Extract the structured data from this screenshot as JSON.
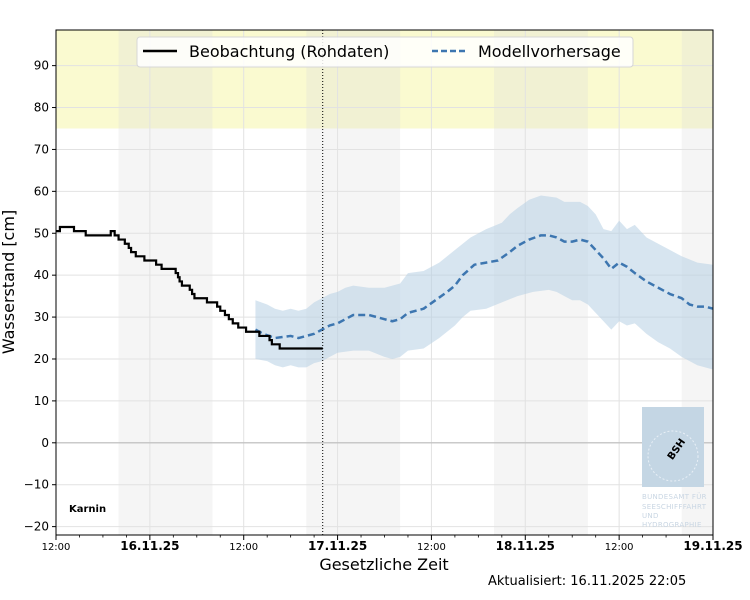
{
  "chart_data": {
    "type": "line",
    "ylabel": "Wasserstand [cm]",
    "xlabel": "Gesetzliche Zeit",
    "ylim": [
      -22,
      98.5
    ],
    "xlim_hours": [
      0,
      84
    ],
    "grid": true,
    "yticks": [
      -20,
      -10,
      0,
      10,
      20,
      30,
      40,
      50,
      60,
      70,
      80,
      90
    ],
    "ytick_labels": [
      "−20",
      "−10",
      "0",
      "10",
      "20",
      "30",
      "40",
      "50",
      "60",
      "70",
      "80",
      "90"
    ],
    "xticks": [
      {
        "hour": 0,
        "label": "12:00",
        "major": false
      },
      {
        "hour": 12,
        "label": "16.11.25",
        "major": true
      },
      {
        "hour": 24,
        "label": "12:00",
        "major": false
      },
      {
        "hour": 36,
        "label": "17.11.25",
        "major": true
      },
      {
        "hour": 48,
        "label": "12:00",
        "major": false
      },
      {
        "hour": 60,
        "label": "18.11.25",
        "major": true
      },
      {
        "hour": 72,
        "label": "12:00",
        "major": false
      },
      {
        "hour": 84,
        "label": "19.11.25",
        "major": true
      }
    ],
    "night_bands_hours": [
      [
        8,
        20
      ],
      [
        32,
        44
      ],
      [
        56,
        68
      ],
      [
        80,
        84
      ]
    ],
    "warning_band_cm": [
      75,
      98.5
    ],
    "now_hour": 34.1,
    "station": "Karnin",
    "series": [
      {
        "name": "Beobachtung (Rohdaten)",
        "style": "solid",
        "color": "#000000",
        "points": [
          [
            0,
            50.5
          ],
          [
            0.5,
            51.5
          ],
          [
            2.3,
            50.5
          ],
          [
            3.8,
            49.5
          ],
          [
            7.0,
            50.5
          ],
          [
            7.5,
            49.5
          ],
          [
            8.0,
            48.5
          ],
          [
            8.8,
            47.5
          ],
          [
            9.3,
            46.5
          ],
          [
            9.6,
            45.5
          ],
          [
            10.2,
            44.5
          ],
          [
            11.3,
            43.5
          ],
          [
            12.8,
            42.5
          ],
          [
            13.5,
            41.5
          ],
          [
            15.3,
            40.5
          ],
          [
            15.6,
            39.5
          ],
          [
            15.8,
            38.5
          ],
          [
            16.1,
            37.5
          ],
          [
            17.1,
            36.5
          ],
          [
            17.4,
            35.5
          ],
          [
            17.7,
            34.5
          ],
          [
            19.3,
            33.5
          ],
          [
            20.6,
            32.5
          ],
          [
            21.0,
            31.5
          ],
          [
            21.6,
            30.5
          ],
          [
            22.1,
            29.5
          ],
          [
            22.6,
            28.5
          ],
          [
            23.3,
            27.5
          ],
          [
            24.3,
            26.5
          ],
          [
            26.0,
            25.5
          ],
          [
            27.3,
            24.5
          ],
          [
            27.6,
            23.5
          ],
          [
            28.6,
            22.5
          ],
          [
            34.1,
            22.5
          ]
        ]
      },
      {
        "name": "Modellvorhersage",
        "style": "dashed",
        "color": "#3d76b0",
        "band_color": "#b7cfe4",
        "points": [
          [
            25.5,
            27.0
          ],
          [
            26.5,
            26.0
          ],
          [
            28.0,
            25.0
          ],
          [
            30.0,
            25.5
          ],
          [
            31.0,
            25.0
          ],
          [
            32.0,
            25.5
          ],
          [
            33.0,
            26.0
          ],
          [
            34.0,
            27.0
          ],
          [
            35.0,
            28.0
          ],
          [
            36.0,
            28.5
          ],
          [
            37.0,
            29.5
          ],
          [
            38.0,
            30.5
          ],
          [
            40.0,
            30.5
          ],
          [
            41.0,
            30.0
          ],
          [
            42.0,
            29.5
          ],
          [
            43.0,
            29.0
          ],
          [
            44.0,
            29.5
          ],
          [
            45.0,
            31.0
          ],
          [
            47.0,
            32.0
          ],
          [
            48.5,
            34.0
          ],
          [
            50.0,
            36.0
          ],
          [
            51.0,
            37.5
          ],
          [
            52.0,
            40.0
          ],
          [
            53.5,
            42.5
          ],
          [
            55.0,
            43.0
          ],
          [
            56.5,
            43.5
          ],
          [
            58.0,
            45.5
          ],
          [
            59.0,
            47.0
          ],
          [
            60.5,
            48.5
          ],
          [
            62.0,
            49.5
          ],
          [
            63.0,
            49.5
          ],
          [
            64.0,
            49.0
          ],
          [
            65.0,
            48.0
          ],
          [
            66.0,
            48.0
          ],
          [
            67.0,
            48.5
          ],
          [
            68.0,
            48.0
          ],
          [
            69.0,
            46.0
          ],
          [
            70.0,
            44.0
          ],
          [
            71.0,
            41.5
          ],
          [
            72.0,
            43.0
          ],
          [
            73.0,
            42.0
          ],
          [
            74.0,
            40.5
          ],
          [
            75.5,
            38.5
          ],
          [
            77.0,
            37.0
          ],
          [
            78.5,
            35.5
          ],
          [
            80.0,
            34.5
          ],
          [
            81.0,
            33.0
          ],
          [
            82.0,
            32.5
          ],
          [
            83.0,
            32.5
          ],
          [
            84.0,
            32.0
          ]
        ],
        "band_upper": [
          [
            25.5,
            34.0
          ],
          [
            27.0,
            33.0
          ],
          [
            28.0,
            32.0
          ],
          [
            29.0,
            31.5
          ],
          [
            30.0,
            32.0
          ],
          [
            31.0,
            31.5
          ],
          [
            32.0,
            32.0
          ],
          [
            33.0,
            33.5
          ],
          [
            34.0,
            34.5
          ],
          [
            35.0,
            35.5
          ],
          [
            36.0,
            36.0
          ],
          [
            37.0,
            37.0
          ],
          [
            38.0,
            37.5
          ],
          [
            40.0,
            37.0
          ],
          [
            42.0,
            37.0
          ],
          [
            43.0,
            37.5
          ],
          [
            44.0,
            38.0
          ],
          [
            45.0,
            40.5
          ],
          [
            47.0,
            41.0
          ],
          [
            49.0,
            43.0
          ],
          [
            51.0,
            46.0
          ],
          [
            53.0,
            49.0
          ],
          [
            55.0,
            51.0
          ],
          [
            57.0,
            52.5
          ],
          [
            58.0,
            54.5
          ],
          [
            59.0,
            56.0
          ],
          [
            60.5,
            58.0
          ],
          [
            62.0,
            59.0
          ],
          [
            64.0,
            58.5
          ],
          [
            65.0,
            57.5
          ],
          [
            67.0,
            57.5
          ],
          [
            68.0,
            56.5
          ],
          [
            69.0,
            54.5
          ],
          [
            70.0,
            51.0
          ],
          [
            71.0,
            50.5
          ],
          [
            72.0,
            53.0
          ],
          [
            73.0,
            51.0
          ],
          [
            74.0,
            52.0
          ],
          [
            75.5,
            49.0
          ],
          [
            77.0,
            47.5
          ],
          [
            78.5,
            46.0
          ],
          [
            80.0,
            44.5
          ],
          [
            82.0,
            43.0
          ],
          [
            84.0,
            42.5
          ]
        ],
        "band_lower": [
          [
            25.5,
            20.0
          ],
          [
            27.0,
            19.5
          ],
          [
            28.0,
            18.5
          ],
          [
            29.0,
            18.0
          ],
          [
            30.0,
            18.5
          ],
          [
            31.0,
            18.0
          ],
          [
            32.0,
            18.0
          ],
          [
            33.0,
            19.0
          ],
          [
            34.0,
            19.5
          ],
          [
            35.0,
            20.5
          ],
          [
            36.0,
            21.5
          ],
          [
            38.0,
            22.0
          ],
          [
            40.0,
            22.0
          ],
          [
            42.0,
            20.5
          ],
          [
            43.0,
            20.0
          ],
          [
            44.0,
            20.5
          ],
          [
            45.0,
            22.0
          ],
          [
            47.0,
            22.5
          ],
          [
            49.0,
            25.0
          ],
          [
            51.0,
            28.0
          ],
          [
            52.0,
            30.0
          ],
          [
            53.0,
            31.5
          ],
          [
            55.0,
            32.0
          ],
          [
            57.0,
            33.5
          ],
          [
            59.0,
            35.0
          ],
          [
            61.0,
            36.0
          ],
          [
            63.0,
            36.5
          ],
          [
            64.0,
            36.0
          ],
          [
            65.0,
            35.0
          ],
          [
            66.0,
            34.0
          ],
          [
            67.0,
            34.0
          ],
          [
            68.0,
            33.0
          ],
          [
            69.0,
            31.0
          ],
          [
            70.0,
            29.0
          ],
          [
            71.0,
            27.0
          ],
          [
            72.0,
            29.0
          ],
          [
            73.0,
            28.0
          ],
          [
            74.0,
            28.5
          ],
          [
            75.5,
            26.0
          ],
          [
            77.0,
            24.0
          ],
          [
            78.5,
            22.5
          ],
          [
            80.0,
            20.5
          ],
          [
            82.0,
            18.5
          ],
          [
            84.0,
            17.5
          ]
        ]
      }
    ]
  },
  "logo": {
    "abbr": "BSH",
    "lines": [
      "BUNDESAMT FÜR",
      "SEESCHIFFFAHRT",
      "UND",
      "HYDROGRAPHIE"
    ]
  },
  "updated_text": "Aktualisiert: 16.11.2025 22:05"
}
